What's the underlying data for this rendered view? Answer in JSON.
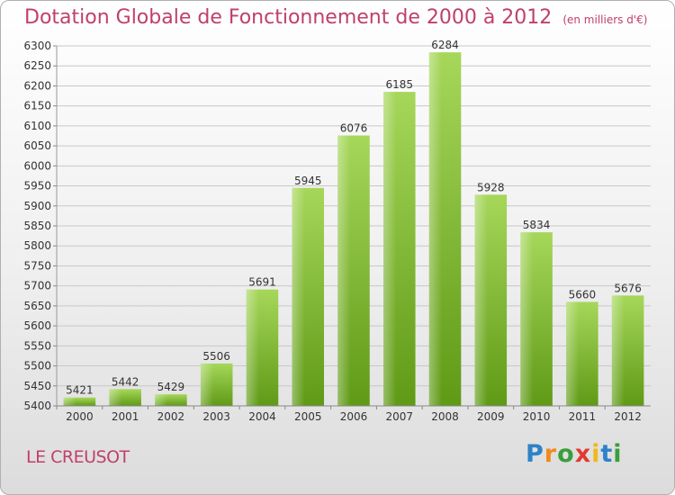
{
  "header": {
    "title": "Dotation Globale de Fonctionnement de 2000 à 2012",
    "unit": "(en milliers d'€)"
  },
  "footer": {
    "commune": "LE CREUSOT",
    "logo": [
      "P",
      "r",
      "o",
      "x",
      "i",
      "t",
      "i"
    ]
  },
  "colors": {
    "title": "#c0406a",
    "bar_light": "#a6d75a",
    "bar_dark": "#5f9a16"
  },
  "chart_data": {
    "type": "bar",
    "categories": [
      "2000",
      "2001",
      "2002",
      "2003",
      "2004",
      "2005",
      "2006",
      "2007",
      "2008",
      "2009",
      "2010",
      "2011",
      "2012"
    ],
    "values": [
      5421,
      5442,
      5429,
      5506,
      5691,
      5945,
      6076,
      6185,
      6284,
      5928,
      5834,
      5660,
      5676
    ],
    "title": "Dotation Globale de Fonctionnement de 2000 à 2012",
    "subtitle": "(en milliers d'€)",
    "ylim": [
      5400,
      6300
    ],
    "ytick_step": 50,
    "grid": true,
    "legend": "none"
  }
}
